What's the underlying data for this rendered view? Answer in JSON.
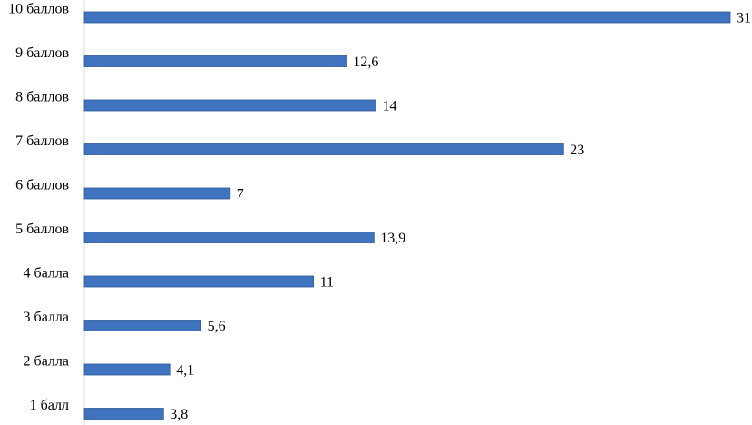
{
  "chart_data": {
    "type": "bar",
    "orientation": "horizontal",
    "categories": [
      "10 баллов",
      "9 баллов",
      "8 баллов",
      "7 баллов",
      "6 баллов",
      "5 баллов",
      "4 балла",
      "3 балла",
      "2 балла",
      "1 балл"
    ],
    "value_labels": [
      "31",
      "12,6",
      "14",
      "23",
      "7",
      "13,9",
      "11",
      "5,6",
      "4,1",
      "3,8"
    ],
    "values": [
      31,
      12.6,
      14,
      23,
      7,
      13.9,
      11,
      5.6,
      4.1,
      3.8
    ],
    "title": "",
    "xlabel": "",
    "ylabel": "",
    "xlim": [
      0,
      31
    ],
    "grid": false,
    "legend": "none",
    "bar_color": "#3F73BE",
    "bar_edge_color": "#2E5A9C"
  }
}
